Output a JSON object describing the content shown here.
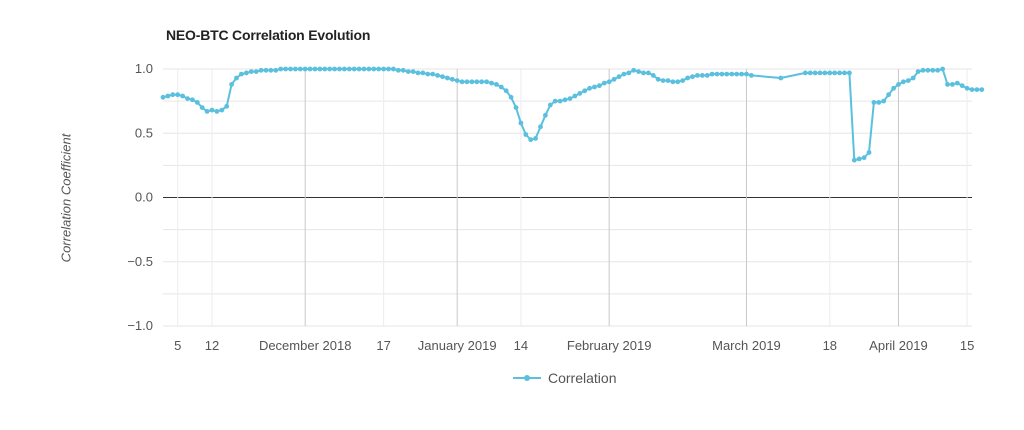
{
  "chart_data": {
    "type": "line",
    "title": "NEO-BTC Correlation Evolution",
    "xlabel": "",
    "ylabel": "Correlation Coefficient",
    "ylim": [
      -1.0,
      1.0
    ],
    "yticks": [
      "1.0",
      "0.5",
      "0.0",
      "−0.5",
      "−1.0"
    ],
    "ytick_values": [
      1.0,
      0.5,
      0.0,
      -0.5,
      -1.0
    ],
    "x_start": "2018-11-02",
    "x_end": "2019-04-16",
    "xticks": [
      {
        "label": "5",
        "date": "2018-11-05",
        "major": false
      },
      {
        "label": "12",
        "date": "2018-11-12",
        "major": false
      },
      {
        "label": "December 2018",
        "date": "2018-12-01",
        "major": true
      },
      {
        "label": "17",
        "date": "2018-12-17",
        "major": false
      },
      {
        "label": "January 2019",
        "date": "2019-01-01",
        "major": true
      },
      {
        "label": "14",
        "date": "2019-01-14",
        "major": false
      },
      {
        "label": "February 2019",
        "date": "2019-02-01",
        "major": true
      },
      {
        "label": "March 2019",
        "date": "2019-03-01",
        "major": true
      },
      {
        "label": "18",
        "date": "2019-03-18",
        "major": false
      },
      {
        "label": "April 2019",
        "date": "2019-04-01",
        "major": true
      },
      {
        "label": "15",
        "date": "2019-04-15",
        "major": false
      }
    ],
    "grid": true,
    "legend_position": "bottom-center",
    "series": [
      {
        "name": "Correlation",
        "color": "#5bc0de",
        "points": [
          [
            "2018-11-02",
            0.78
          ],
          [
            "2018-11-03",
            0.79
          ],
          [
            "2018-11-04",
            0.8
          ],
          [
            "2018-11-05",
            0.8
          ],
          [
            "2018-11-06",
            0.79
          ],
          [
            "2018-11-07",
            0.77
          ],
          [
            "2018-11-08",
            0.76
          ],
          [
            "2018-11-09",
            0.74
          ],
          [
            "2018-11-10",
            0.7
          ],
          [
            "2018-11-11",
            0.67
          ],
          [
            "2018-11-12",
            0.68
          ],
          [
            "2018-11-13",
            0.67
          ],
          [
            "2018-11-14",
            0.68
          ],
          [
            "2018-11-15",
            0.71
          ],
          [
            "2018-11-16",
            0.88
          ],
          [
            "2018-11-17",
            0.93
          ],
          [
            "2018-11-18",
            0.96
          ],
          [
            "2018-11-19",
            0.97
          ],
          [
            "2018-11-20",
            0.98
          ],
          [
            "2018-11-21",
            0.98
          ],
          [
            "2018-11-22",
            0.99
          ],
          [
            "2018-11-23",
            0.99
          ],
          [
            "2018-11-24",
            0.99
          ],
          [
            "2018-11-25",
            0.99
          ],
          [
            "2018-11-26",
            1.0
          ],
          [
            "2018-11-27",
            1.0
          ],
          [
            "2018-11-28",
            1.0
          ],
          [
            "2018-11-29",
            1.0
          ],
          [
            "2018-11-30",
            1.0
          ],
          [
            "2018-12-01",
            1.0
          ],
          [
            "2018-12-02",
            1.0
          ],
          [
            "2018-12-03",
            1.0
          ],
          [
            "2018-12-04",
            1.0
          ],
          [
            "2018-12-05",
            1.0
          ],
          [
            "2018-12-06",
            1.0
          ],
          [
            "2018-12-07",
            1.0
          ],
          [
            "2018-12-08",
            1.0
          ],
          [
            "2018-12-09",
            1.0
          ],
          [
            "2018-12-10",
            1.0
          ],
          [
            "2018-12-11",
            1.0
          ],
          [
            "2018-12-12",
            1.0
          ],
          [
            "2018-12-13",
            1.0
          ],
          [
            "2018-12-14",
            1.0
          ],
          [
            "2018-12-15",
            1.0
          ],
          [
            "2018-12-16",
            1.0
          ],
          [
            "2018-12-17",
            1.0
          ],
          [
            "2018-12-18",
            1.0
          ],
          [
            "2018-12-19",
            1.0
          ],
          [
            "2018-12-20",
            0.99
          ],
          [
            "2018-12-21",
            0.99
          ],
          [
            "2018-12-22",
            0.98
          ],
          [
            "2018-12-23",
            0.98
          ],
          [
            "2018-12-24",
            0.97
          ],
          [
            "2018-12-25",
            0.97
          ],
          [
            "2018-12-26",
            0.96
          ],
          [
            "2018-12-27",
            0.96
          ],
          [
            "2018-12-28",
            0.95
          ],
          [
            "2018-12-29",
            0.94
          ],
          [
            "2018-12-30",
            0.93
          ],
          [
            "2018-12-31",
            0.92
          ],
          [
            "2019-01-01",
            0.91
          ],
          [
            "2019-01-02",
            0.9
          ],
          [
            "2019-01-03",
            0.9
          ],
          [
            "2019-01-04",
            0.9
          ],
          [
            "2019-01-05",
            0.9
          ],
          [
            "2019-01-06",
            0.9
          ],
          [
            "2019-01-07",
            0.9
          ],
          [
            "2019-01-08",
            0.89
          ],
          [
            "2019-01-09",
            0.88
          ],
          [
            "2019-01-10",
            0.86
          ],
          [
            "2019-01-11",
            0.83
          ],
          [
            "2019-01-12",
            0.78
          ],
          [
            "2019-01-13",
            0.7
          ],
          [
            "2019-01-14",
            0.58
          ],
          [
            "2019-01-15",
            0.49
          ],
          [
            "2019-01-16",
            0.45
          ],
          [
            "2019-01-17",
            0.46
          ],
          [
            "2019-01-18",
            0.55
          ],
          [
            "2019-01-19",
            0.64
          ],
          [
            "2019-01-20",
            0.72
          ],
          [
            "2019-01-21",
            0.75
          ],
          [
            "2019-01-22",
            0.75
          ],
          [
            "2019-01-23",
            0.76
          ],
          [
            "2019-01-24",
            0.77
          ],
          [
            "2019-01-25",
            0.79
          ],
          [
            "2019-01-26",
            0.81
          ],
          [
            "2019-01-27",
            0.83
          ],
          [
            "2019-01-28",
            0.85
          ],
          [
            "2019-01-29",
            0.86
          ],
          [
            "2019-01-30",
            0.87
          ],
          [
            "2019-01-31",
            0.89
          ],
          [
            "2019-02-01",
            0.9
          ],
          [
            "2019-02-02",
            0.92
          ],
          [
            "2019-02-03",
            0.94
          ],
          [
            "2019-02-04",
            0.96
          ],
          [
            "2019-02-05",
            0.97
          ],
          [
            "2019-02-06",
            0.99
          ],
          [
            "2019-02-07",
            0.98
          ],
          [
            "2019-02-08",
            0.97
          ],
          [
            "2019-02-09",
            0.97
          ],
          [
            "2019-02-10",
            0.95
          ],
          [
            "2019-02-11",
            0.92
          ],
          [
            "2019-02-12",
            0.91
          ],
          [
            "2019-02-13",
            0.91
          ],
          [
            "2019-02-14",
            0.9
          ],
          [
            "2019-02-15",
            0.9
          ],
          [
            "2019-02-16",
            0.91
          ],
          [
            "2019-02-17",
            0.93
          ],
          [
            "2019-02-18",
            0.94
          ],
          [
            "2019-02-19",
            0.95
          ],
          [
            "2019-02-20",
            0.95
          ],
          [
            "2019-02-21",
            0.95
          ],
          [
            "2019-02-22",
            0.96
          ],
          [
            "2019-02-23",
            0.96
          ],
          [
            "2019-02-24",
            0.96
          ],
          [
            "2019-02-25",
            0.96
          ],
          [
            "2019-02-26",
            0.96
          ],
          [
            "2019-02-27",
            0.96
          ],
          [
            "2019-02-28",
            0.96
          ],
          [
            "2019-03-01",
            0.96
          ],
          [
            "2019-03-02",
            0.95
          ],
          [
            "2019-03-08",
            0.93
          ],
          [
            "2019-03-13",
            0.97
          ],
          [
            "2019-03-14",
            0.97
          ],
          [
            "2019-03-15",
            0.97
          ],
          [
            "2019-03-16",
            0.97
          ],
          [
            "2019-03-17",
            0.97
          ],
          [
            "2019-03-18",
            0.97
          ],
          [
            "2019-03-19",
            0.97
          ],
          [
            "2019-03-20",
            0.97
          ],
          [
            "2019-03-21",
            0.97
          ],
          [
            "2019-03-22",
            0.97
          ],
          [
            "2019-03-23",
            0.29
          ],
          [
            "2019-03-24",
            0.3
          ],
          [
            "2019-03-25",
            0.31
          ],
          [
            "2019-03-26",
            0.35
          ],
          [
            "2019-03-27",
            0.74
          ],
          [
            "2019-03-28",
            0.74
          ],
          [
            "2019-03-29",
            0.75
          ],
          [
            "2019-03-30",
            0.8
          ],
          [
            "2019-03-31",
            0.85
          ],
          [
            "2019-04-01",
            0.88
          ],
          [
            "2019-04-02",
            0.9
          ],
          [
            "2019-04-03",
            0.91
          ],
          [
            "2019-04-04",
            0.93
          ],
          [
            "2019-04-05",
            0.98
          ],
          [
            "2019-04-06",
            0.99
          ],
          [
            "2019-04-07",
            0.99
          ],
          [
            "2019-04-08",
            0.99
          ],
          [
            "2019-04-09",
            0.99
          ],
          [
            "2019-04-10",
            1.0
          ],
          [
            "2019-04-11",
            0.88
          ],
          [
            "2019-04-12",
            0.88
          ],
          [
            "2019-04-13",
            0.89
          ],
          [
            "2019-04-14",
            0.87
          ],
          [
            "2019-04-15",
            0.85
          ],
          [
            "2019-04-16",
            0.84
          ],
          [
            "2019-04-17",
            0.84
          ],
          [
            "2019-04-18",
            0.84
          ]
        ]
      }
    ]
  }
}
